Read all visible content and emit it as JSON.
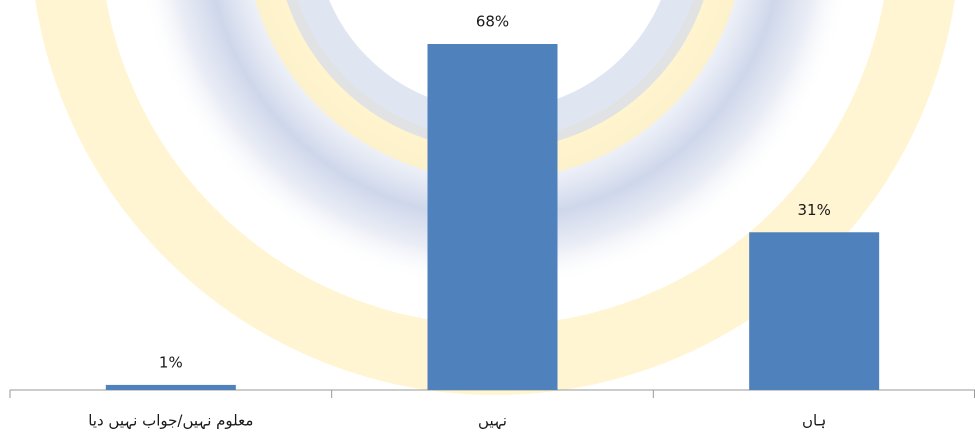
{
  "chart_data": {
    "type": "bar",
    "categories": [
      "معلوم نہیں/جواب نہیں دیا",
      "نہیں",
      "ہاں"
    ],
    "values": [
      1,
      68,
      31
    ],
    "value_labels": [
      "1%",
      "68%",
      "31%"
    ],
    "color": "#4f81bd"
  }
}
